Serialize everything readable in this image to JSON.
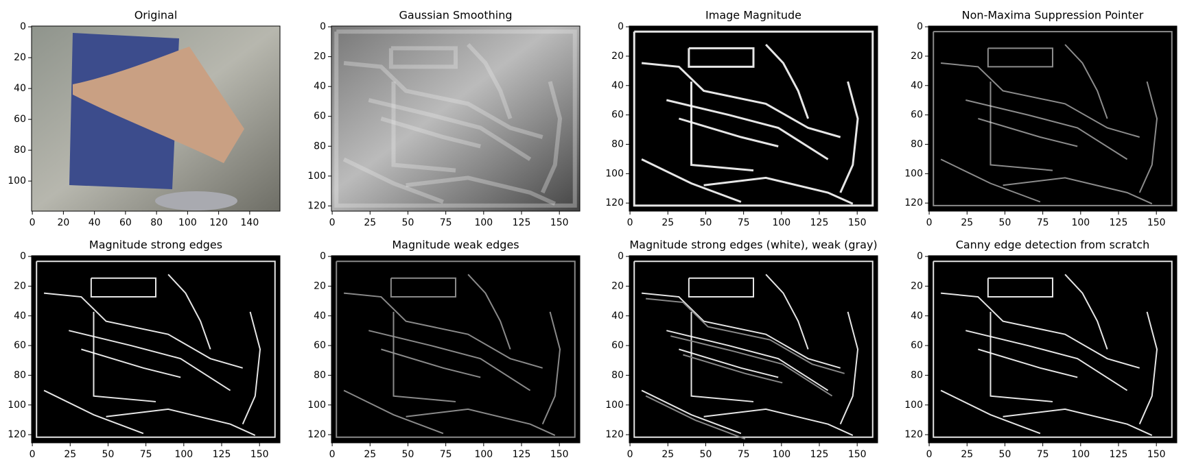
{
  "chart_data": [
    {
      "type": "image",
      "title": "Original",
      "xlim": [
        -0.5,
        159.5
      ],
      "ylim": [
        119.5,
        -0.5
      ],
      "xticks": [
        0,
        20,
        40,
        60,
        80,
        100,
        120,
        140
      ],
      "yticks": [
        0,
        20,
        40,
        60,
        80,
        100
      ]
    },
    {
      "type": "image",
      "title": "Gaussian Smoothing",
      "xlim": [
        -0.5,
        163.5
      ],
      "ylim": [
        123.5,
        -0.5
      ],
      "xticks": [
        0,
        25,
        50,
        75,
        100,
        125,
        150
      ],
      "yticks": [
        0,
        20,
        40,
        60,
        80,
        100,
        120
      ]
    },
    {
      "type": "image",
      "title": "Image Magnitude",
      "xlim": [
        -0.5,
        163.5
      ],
      "ylim": [
        125.5,
        -0.5
      ],
      "xticks": [
        0,
        25,
        50,
        75,
        100,
        125,
        150
      ],
      "yticks": [
        0,
        20,
        40,
        60,
        80,
        100,
        120
      ]
    },
    {
      "type": "image",
      "title": "Non-Maxima Suppression Pointer",
      "xlim": [
        -0.5,
        163.5
      ],
      "ylim": [
        125.5,
        -0.5
      ],
      "xticks": [
        0,
        25,
        50,
        75,
        100,
        125,
        150
      ],
      "yticks": [
        0,
        20,
        40,
        60,
        80,
        100,
        120
      ]
    },
    {
      "type": "image",
      "title": "Magnitude strong edges",
      "xlim": [
        -0.5,
        163.5
      ],
      "ylim": [
        125.5,
        -0.5
      ],
      "xticks": [
        0,
        25,
        50,
        75,
        100,
        125,
        150
      ],
      "yticks": [
        0,
        20,
        40,
        60,
        80,
        100,
        120
      ]
    },
    {
      "type": "image",
      "title": "Magnitude weak edges",
      "xlim": [
        -0.5,
        163.5
      ],
      "ylim": [
        125.5,
        -0.5
      ],
      "xticks": [
        0,
        25,
        50,
        75,
        100,
        125,
        150
      ],
      "yticks": [
        0,
        20,
        40,
        60,
        80,
        100,
        120
      ]
    },
    {
      "type": "image",
      "title": "Magnitude strong edges (white), weak (gray)",
      "xlim": [
        -0.5,
        163.5
      ],
      "ylim": [
        125.5,
        -0.5
      ],
      "xticks": [
        0,
        25,
        50,
        75,
        100,
        125,
        150
      ],
      "yticks": [
        0,
        20,
        40,
        60,
        80,
        100,
        120
      ]
    },
    {
      "type": "image",
      "title": "Canny edge detection from scratch",
      "xlim": [
        -0.5,
        163.5
      ],
      "ylim": [
        125.5,
        -0.5
      ],
      "xticks": [
        0,
        25,
        50,
        75,
        100,
        125,
        150
      ],
      "yticks": [
        0,
        20,
        40,
        60,
        80,
        100,
        120
      ]
    }
  ]
}
